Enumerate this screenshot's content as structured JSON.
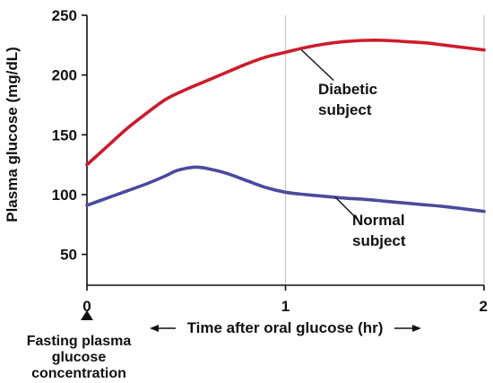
{
  "chart_data": {
    "type": "line",
    "title": "",
    "xlabel": "Time after oral glucose (hr)",
    "ylabel": "Plasma glucose (mg/dL)",
    "xlim": [
      0,
      2
    ],
    "ylim": [
      0,
      250
    ],
    "x_ticks": [
      0,
      1,
      2
    ],
    "y_ticks": [
      50,
      100,
      150,
      200,
      250
    ],
    "grid": "vertical lines at x = 1 and x = 2",
    "series": [
      {
        "name": "Diabetic subject",
        "color": "#cc1c2c",
        "points": [
          [
            0,
            125
          ],
          [
            0.1,
            140
          ],
          [
            0.2,
            155
          ],
          [
            0.3,
            168
          ],
          [
            0.4,
            180
          ],
          [
            0.5,
            188
          ],
          [
            0.6,
            195
          ],
          [
            0.7,
            202
          ],
          [
            0.8,
            209
          ],
          [
            0.9,
            215
          ],
          [
            1.0,
            219
          ],
          [
            1.1,
            223
          ],
          [
            1.2,
            226
          ],
          [
            1.3,
            228
          ],
          [
            1.4,
            229
          ],
          [
            1.5,
            229
          ],
          [
            1.6,
            228
          ],
          [
            1.7,
            227
          ],
          [
            1.8,
            225
          ],
          [
            1.9,
            223
          ],
          [
            2.0,
            221
          ]
        ]
      },
      {
        "name": "Normal subject",
        "color": "#4a4a9e",
        "points": [
          [
            0,
            91
          ],
          [
            0.1,
            97
          ],
          [
            0.2,
            103
          ],
          [
            0.3,
            109
          ],
          [
            0.4,
            116
          ],
          [
            0.45,
            120
          ],
          [
            0.5,
            122
          ],
          [
            0.55,
            123
          ],
          [
            0.6,
            122
          ],
          [
            0.7,
            118
          ],
          [
            0.8,
            112
          ],
          [
            0.9,
            106
          ],
          [
            1.0,
            102
          ],
          [
            1.1,
            100
          ],
          [
            1.2,
            98.5
          ],
          [
            1.3,
            97
          ],
          [
            1.4,
            96
          ],
          [
            1.5,
            94.5
          ],
          [
            1.6,
            93
          ],
          [
            1.7,
            91.5
          ],
          [
            1.8,
            90
          ],
          [
            1.9,
            88
          ],
          [
            2.0,
            86
          ]
        ]
      }
    ],
    "annotations": [
      {
        "series": "Diabetic subject",
        "lines": [
          "Diabetic",
          "subject"
        ],
        "anchor": [
          1.08,
          221
        ]
      },
      {
        "series": "Normal subject",
        "lines": [
          "Normal",
          "subject"
        ],
        "anchor": [
          1.25,
          98
        ]
      }
    ],
    "footnote": {
      "at_x": 0,
      "lines": [
        "Fasting plasma",
        "glucose",
        "concentration"
      ]
    }
  }
}
